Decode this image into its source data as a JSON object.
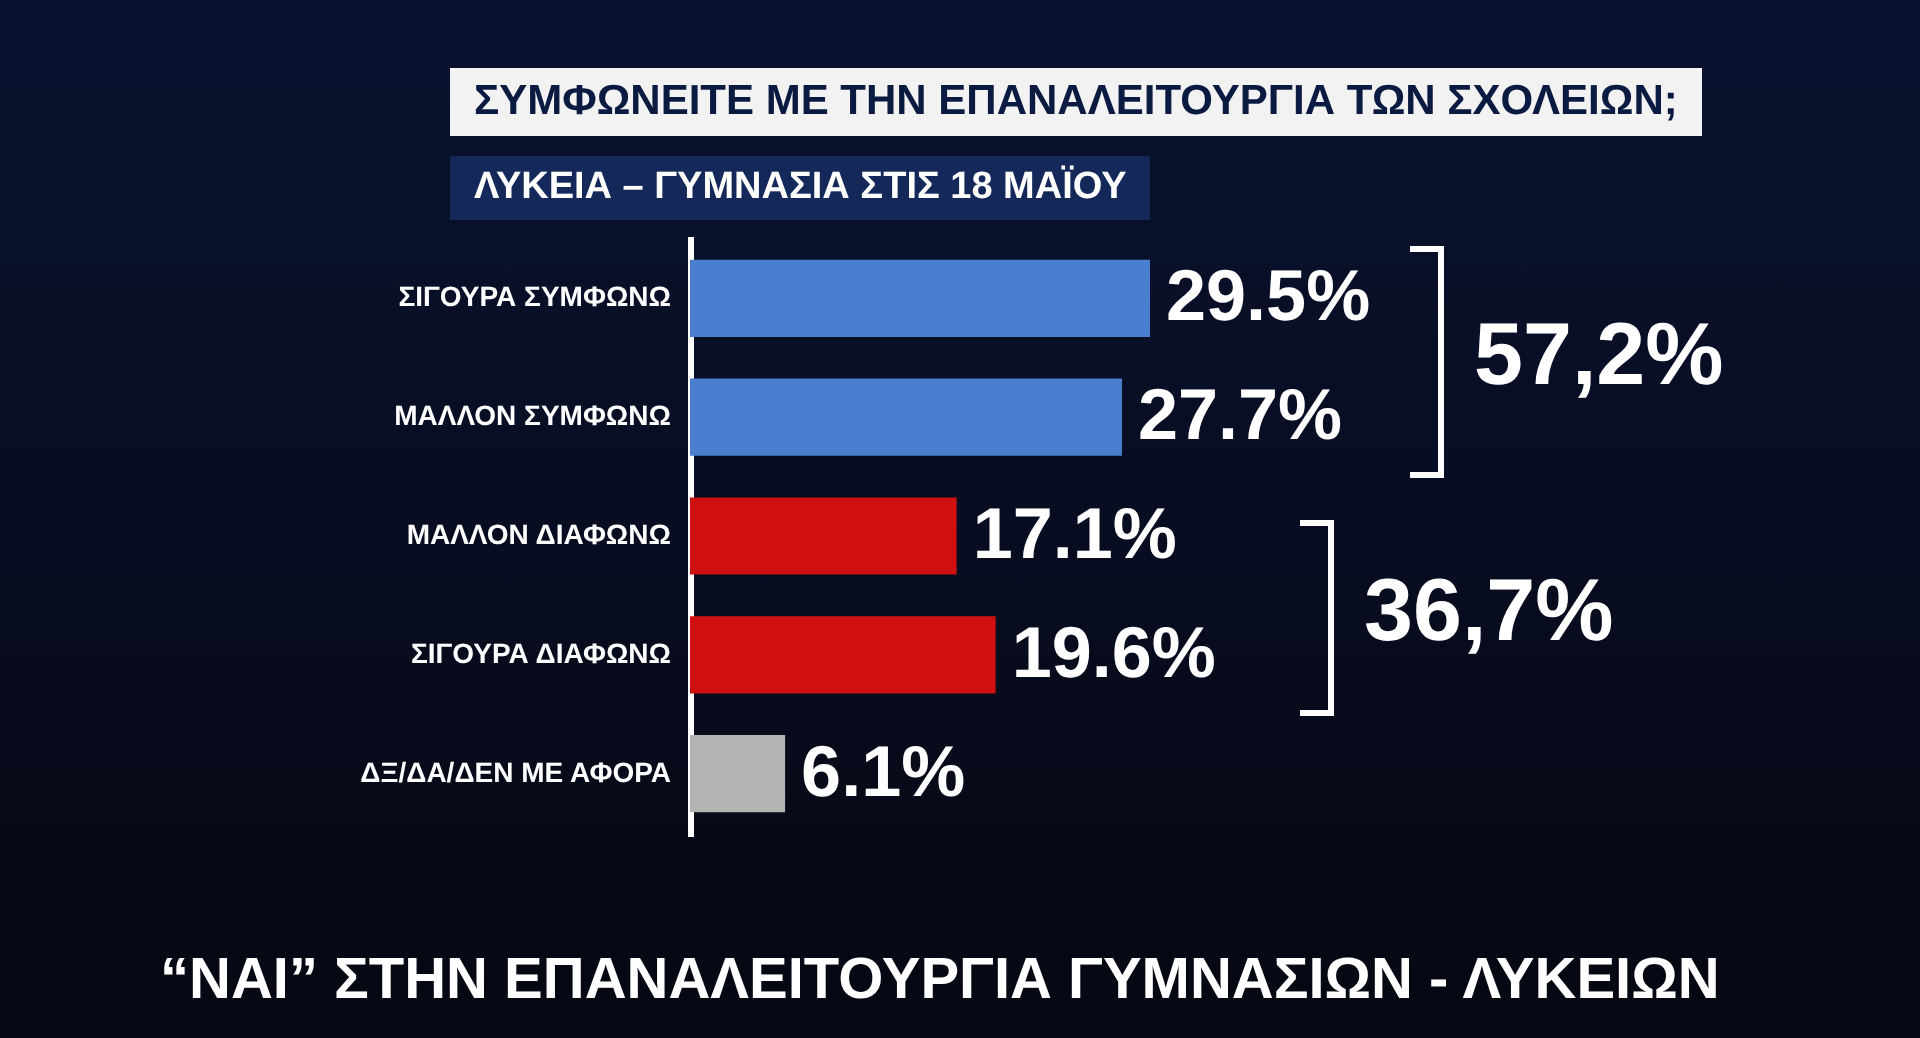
{
  "chart_data": {
    "type": "bar",
    "orientation": "horizontal",
    "title": "ΣΥΜΦΩΝΕΙΤΕ ΜΕ ΤΗΝ ΕΠΑΝΑΛΕΙΤΟΥΡΓΙΑ ΤΩΝ ΣΧΟΛΕΙΩΝ;",
    "subtitle": "ΛΥΚΕΙΑ – ΓΥΜΝΑΣΙΑ ΣΤΙΣ 18 ΜΑΪΟΥ",
    "categories": [
      "ΣΙΓΟΥΡΑ ΣΥΜΦΩΝΩ",
      "ΜΑΛΛΟΝ ΣΥΜΦΩΝΩ",
      "ΜΑΛΛΟΝ ΔΙΑΦΩΝΩ",
      "ΣΙΓΟΥΡΑ ΔΙΑΦΩΝΩ",
      "ΔΞ/ΔΑ/ΔΕΝ ΜΕ ΑΦΟΡΑ"
    ],
    "values": [
      29.5,
      27.7,
      17.1,
      19.6,
      6.1
    ],
    "colors": [
      "#4a7fd0",
      "#4a7fd0",
      "#d01010",
      "#d01010",
      "#b4b4b4"
    ],
    "value_labels": [
      "29.5%",
      "27.7%",
      "17.1%",
      "19.6%",
      "6.1%"
    ],
    "annotations": [
      "57,2%",
      "36,7%",
      "“ΝΑΙ” ΣΤΗΝ ΕΠΑΝΑΛΕΙΤΟΥΡΓΙΑ ΓΥΜΝΑΣΙΩΝ - ΛΥΚΕΙΩΝ"
    ]
  }
}
